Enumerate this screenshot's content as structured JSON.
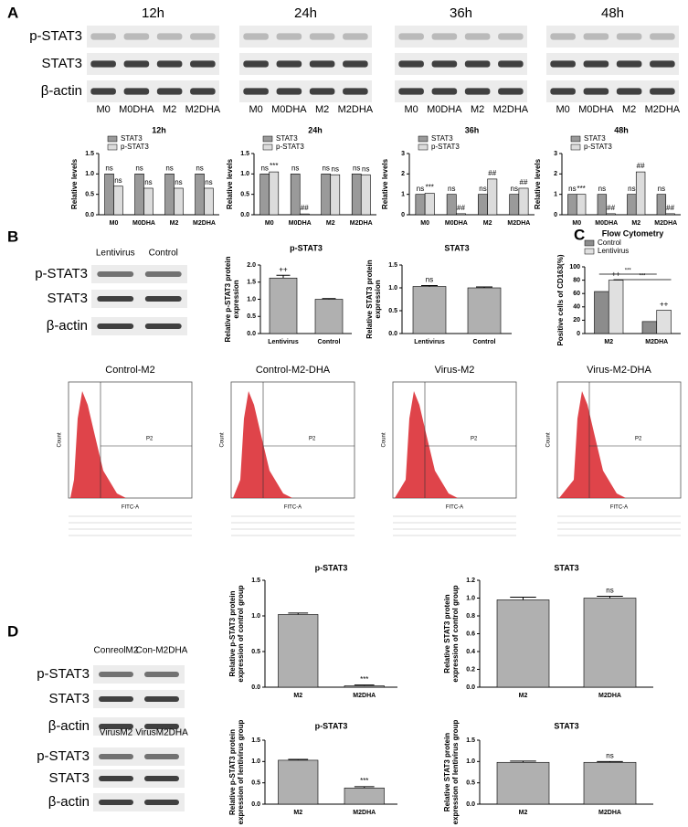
{
  "panel_labels": [
    "A",
    "B",
    "C",
    "D"
  ],
  "figure_a": {
    "times": [
      "12h",
      "24h",
      "36h",
      "48h"
    ],
    "rows": [
      "p-STAT3",
      "STAT3",
      "β-actin"
    ],
    "lanes": [
      "M0",
      "M0DHA",
      "M2",
      "M2DHA"
    ]
  },
  "figure_b_blot": {
    "lanes": [
      "Lentivirus",
      "Control"
    ],
    "rows": [
      "p-STAT3",
      "STAT3",
      "β-actin"
    ]
  },
  "figure_d_blots": [
    {
      "lanes": [
        "ConreolM2",
        "Con-M2DHA"
      ],
      "rows": [
        "p-STAT3",
        "STAT3",
        "β-actin"
      ]
    },
    {
      "lanes": [
        "VirusM2",
        "VirusM2DHA"
      ],
      "rows": [
        "p-STAT3",
        "STAT3",
        "β-actin"
      ]
    }
  ],
  "flow_panels": [
    {
      "title": "Control-M2",
      "gate": "P2",
      "ylabel": "Count",
      "xlabel": "FITC-A"
    },
    {
      "title": "Control-M2-DHA",
      "gate": "P2",
      "ylabel": "Count",
      "xlabel": "FITC-A"
    },
    {
      "title": "Virus-M2",
      "gate": "P2",
      "ylabel": "Count",
      "xlabel": "FITC-A"
    },
    {
      "title": "Virus-M2-DHA",
      "gate": "P2",
      "ylabel": "Count",
      "xlabel": "FITC-A"
    }
  ],
  "chart_data": [
    {
      "type": "bar",
      "title": "12h",
      "ylabel": [
        "Relative levels"
      ],
      "categories": [
        "M0",
        "M0DHA",
        "M2",
        "M2DHA"
      ],
      "legend": "top-left",
      "series": [
        {
          "name": "STAT3",
          "color": "#9a9a9a",
          "values": [
            1,
            1,
            1,
            1
          ],
          "annotations": [
            "ns",
            "ns",
            "ns",
            "ns"
          ]
        },
        {
          "name": "p-STAT3",
          "color": "#dcdcdc",
          "values": [
            0.7,
            0.65,
            0.65,
            0.65
          ],
          "annotations": [
            "ns",
            "ns",
            "ns",
            "ns"
          ]
        }
      ],
      "ylim": [
        0,
        1.5
      ],
      "yticks": [
        {
          "value": 0,
          "label": "0.0"
        },
        {
          "value": 0.5,
          "label": "0.5"
        },
        {
          "value": 1,
          "label": "1.0"
        },
        {
          "value": 1.5,
          "label": "1.5"
        }
      ]
    },
    {
      "type": "bar",
      "title": "24h",
      "ylabel": [
        "Relative levels"
      ],
      "categories": [
        "M0",
        "M0DHA",
        "M2",
        "M2DHA"
      ],
      "legend": "top-left",
      "series": [
        {
          "name": "STAT3",
          "color": "#9a9a9a",
          "values": [
            1,
            1,
            1,
            1
          ],
          "annotations": [
            "ns",
            "ns",
            "ns",
            "ns"
          ]
        },
        {
          "name": "p-STAT3",
          "color": "#dcdcdc",
          "values": [
            1.05,
            0.02,
            0.98,
            0.98
          ],
          "annotations": [
            "***",
            "##",
            "ns",
            "ns"
          ]
        }
      ],
      "ylim": [
        0,
        1.5
      ],
      "yticks": [
        {
          "value": 0,
          "label": "0.0"
        },
        {
          "value": 0.5,
          "label": "0.5"
        },
        {
          "value": 1,
          "label": "1.0"
        },
        {
          "value": 1.5,
          "label": "1.5"
        }
      ]
    },
    {
      "type": "bar",
      "title": "36h",
      "ylabel": [
        "Relative levels"
      ],
      "categories": [
        "M0",
        "M0DHA",
        "M2",
        "M2DHA"
      ],
      "legend": "top-left",
      "series": [
        {
          "name": "STAT3",
          "color": "#9a9a9a",
          "values": [
            1,
            1,
            1,
            1
          ],
          "annotations": [
            "ns",
            "ns",
            "ns",
            "ns"
          ]
        },
        {
          "name": "p-STAT3",
          "color": "#dcdcdc",
          "values": [
            1.05,
            0.05,
            1.75,
            1.3
          ],
          "annotations": [
            "***",
            "##",
            "##",
            "##"
          ]
        }
      ],
      "ylim": [
        0,
        3
      ],
      "yticks": [
        0,
        1,
        2,
        3
      ]
    },
    {
      "type": "bar",
      "title": "48h",
      "ylabel": [
        "Relative levels"
      ],
      "categories": [
        "M0",
        "M0DHA",
        "M2",
        "M2DHA"
      ],
      "legend": "top-left",
      "series": [
        {
          "name": "STAT3",
          "color": "#9a9a9a",
          "values": [
            1,
            1,
            1,
            1
          ],
          "annotations": [
            "ns",
            "ns",
            "ns",
            "ns"
          ]
        },
        {
          "name": "p-STAT3",
          "color": "#dcdcdc",
          "values": [
            1,
            0.05,
            2.1,
            0.05
          ],
          "annotations": [
            "***",
            "##",
            "##",
            "##"
          ]
        }
      ],
      "ylim": [
        0,
        3
      ],
      "yticks": [
        0,
        1,
        2,
        3
      ]
    },
    {
      "type": "bar",
      "title": "p-STAT3",
      "ylabel": [
        "Relative p-STAT3 protein",
        "expression"
      ],
      "categories": [
        "Lentivirus",
        "Control"
      ],
      "color": "#b0b0b0",
      "values": [
        1.62,
        1.0
      ],
      "errors": [
        0.08,
        0.02
      ],
      "annotations": [
        "++",
        null
      ],
      "ylim": [
        0,
        2
      ],
      "yticks": [
        {
          "value": 0,
          "label": "0.0"
        },
        {
          "value": 0.5,
          "label": "0.5"
        },
        {
          "value": 1,
          "label": "1.0"
        },
        {
          "value": 1.5,
          "label": "1.5"
        },
        {
          "value": 2,
          "label": "2.0"
        }
      ]
    },
    {
      "type": "bar",
      "title": "STAT3",
      "ylabel": [
        "Relative STAT3 protein",
        "expression"
      ],
      "categories": [
        "Lentivirus",
        "Control"
      ],
      "color": "#b0b0b0",
      "values": [
        1.03,
        1.0
      ],
      "errors": [
        0.02,
        0.02
      ],
      "annotations": [
        "ns",
        null
      ],
      "ylim": [
        0,
        1.5
      ],
      "yticks": [
        {
          "value": 0,
          "label": "0.0"
        },
        {
          "value": 0.5,
          "label": "0.5"
        },
        {
          "value": 1,
          "label": "1.0"
        },
        {
          "value": 1.5,
          "label": "1.5"
        }
      ]
    },
    {
      "type": "bar",
      "title": "Flow Cytometry",
      "ylabel": [
        "Positive cells of CD163(%)"
      ],
      "categories": [
        "M2",
        "M2DHA"
      ],
      "legend": "top-left",
      "series": [
        {
          "name": "Control",
          "color": "#8c8c8c",
          "values": [
            63,
            18
          ],
          "annotations": [
            null,
            null
          ]
        },
        {
          "name": "Lentivirus",
          "color": "#e0e0e0",
          "values": [
            80,
            35
          ],
          "annotations": [
            "++",
            "++"
          ]
        }
      ],
      "brackets": [
        "***",
        "***"
      ],
      "ylim": [
        0,
        100
      ],
      "yticks": [
        0,
        20,
        40,
        60,
        80,
        100
      ]
    },
    {
      "type": "bar",
      "title": "p-STAT3",
      "ylabel": [
        "Relative p-STAT3 protein",
        "expression of control group"
      ],
      "categories": [
        "M2",
        "M2DHA"
      ],
      "color": "#b0b0b0",
      "values": [
        1.02,
        0.02
      ],
      "errors": [
        0.02,
        0.01
      ],
      "annotations": [
        null,
        "***"
      ],
      "ylim": [
        0,
        1.5
      ],
      "yticks": [
        {
          "value": 0,
          "label": "0.0"
        },
        {
          "value": 0.5,
          "label": "0.5"
        },
        {
          "value": 1,
          "label": "1.0"
        },
        {
          "value": 1.5,
          "label": "1.5"
        }
      ]
    },
    {
      "type": "bar",
      "title": "STAT3",
      "ylabel": [
        "Relative STAT3 protein",
        "expression of control group"
      ],
      "categories": [
        "M2",
        "M2DHA"
      ],
      "color": "#b0b0b0",
      "values": [
        0.98,
        1.0
      ],
      "errors": [
        0.03,
        0.02
      ],
      "annotations": [
        null,
        "ns"
      ],
      "ylim": [
        0,
        1.2
      ],
      "yticks": [
        {
          "value": 0,
          "label": "0.0"
        },
        {
          "value": 0.2,
          "label": "0.2"
        },
        {
          "value": 0.4,
          "label": "0.4"
        },
        {
          "value": 0.6,
          "label": "0.6"
        },
        {
          "value": 0.8,
          "label": "0.8"
        },
        {
          "value": 1,
          "label": "1.0"
        },
        {
          "value": 1.2,
          "label": "1.2"
        }
      ]
    },
    {
      "type": "bar",
      "title": "p-STAT3",
      "ylabel": [
        "Relative p-STAT3 protein",
        "expression of lentivirus group"
      ],
      "categories": [
        "M2",
        "M2DHA"
      ],
      "color": "#b0b0b0",
      "values": [
        1.03,
        0.38
      ],
      "errors": [
        0.02,
        0.03
      ],
      "annotations": [
        null,
        "***"
      ],
      "ylim": [
        0,
        1.5
      ],
      "yticks": [
        {
          "value": 0,
          "label": "0.0"
        },
        {
          "value": 0.5,
          "label": "0.5"
        },
        {
          "value": 1,
          "label": "1.0"
        },
        {
          "value": 1.5,
          "label": "1.5"
        }
      ]
    },
    {
      "type": "bar",
      "title": "STAT3",
      "ylabel": [
        "Relative STAT3 protein",
        "expression of lentivirus group"
      ],
      "categories": [
        "M2",
        "M2DHA"
      ],
      "color": "#b0b0b0",
      "values": [
        0.98,
        0.98
      ],
      "errors": [
        0.03,
        0.02
      ],
      "annotations": [
        null,
        "ns"
      ],
      "ylim": [
        0,
        1.5
      ],
      "yticks": [
        {
          "value": 0,
          "label": "0.0"
        },
        {
          "value": 0.5,
          "label": "0.5"
        },
        {
          "value": 1,
          "label": "1.0"
        },
        {
          "value": 1.5,
          "label": "1.5"
        }
      ]
    }
  ]
}
